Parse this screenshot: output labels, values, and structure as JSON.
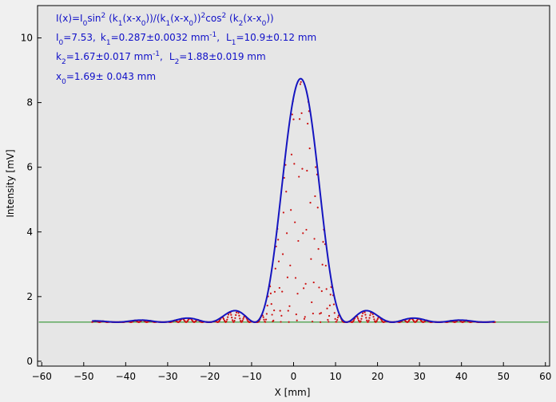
{
  "chart_data": {
    "type": "line",
    "xlabel": "X [mm]",
    "ylabel": "Intensity [mV]",
    "xlim": [
      -61,
      61
    ],
    "ylim": [
      -0.15,
      11
    ],
    "x_ticks": [
      -60,
      -50,
      -40,
      -30,
      -20,
      -10,
      0,
      10,
      20,
      30,
      40,
      50,
      60
    ],
    "y_ticks": [
      0,
      2,
      4,
      6,
      8,
      10
    ],
    "baseline": 1.21,
    "grid": false,
    "fit": {
      "formula_parts": {
        "a": "I(x)=I",
        "a_sub": "0",
        "b": "sin",
        "b_sup": "2",
        "c": " (k",
        "c_sub": "1",
        "d": "(x-x",
        "d_sub": "0",
        "e": "))/(k",
        "e_sub": "1",
        "f": "(x-x",
        "f_sub": "0",
        "g": "))",
        "g_sup": "2",
        "h": "cos",
        "h_sup": "2",
        "i": " (k",
        "i_sub": "2",
        "j": "(x-x",
        "j_sub": "0",
        "k": "))"
      },
      "params": {
        "I0_label": "I",
        "I0_sub": "0",
        "I0_val": "=7.53,",
        "k1_label": "k",
        "k1_sub": "1",
        "k1_val": "=0.287±0.0032 mm",
        "k1_unit_sup": "-1",
        "k1_end": ",",
        "L1_label": "L",
        "L1_sub": "1",
        "L1_val": "=10.9±0.12 mm",
        "k2_label": "k",
        "k2_sub": "2",
        "k2_val": "=1.67±0.017 mm",
        "k2_unit_sup": "-1",
        "k2_end": ",",
        "L2_label": "L",
        "L2_sub": "2",
        "L2_val": "=1.88±0.019 mm",
        "x0_label": "x",
        "x0_sub": "0",
        "x0_val": "=1.69±  0.043 mm"
      },
      "I0": 7.53,
      "k1": 0.287,
      "k2": 1.67,
      "x0": 1.69,
      "x_range": [
        -48,
        48
      ]
    },
    "series": [
      {
        "kind": "fit-envelope",
        "color": "#1515c0"
      },
      {
        "kind": "measured-points",
        "color": "#cc1010"
      },
      {
        "kind": "baseline",
        "color": "#1a8a1a"
      }
    ]
  }
}
